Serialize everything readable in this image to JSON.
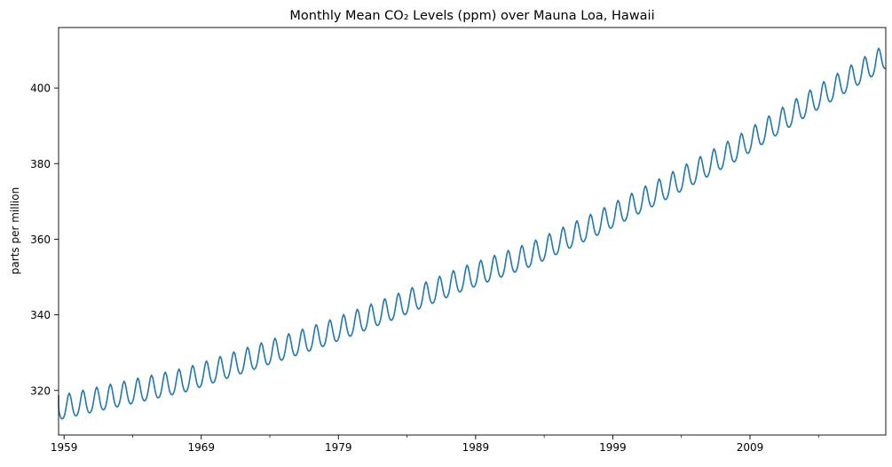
{
  "chart_data": {
    "type": "line",
    "title": "Monthly Mean CO₂ Levels (ppm) over Mauna Loa, Hawaii",
    "xlabel": "",
    "ylabel": "parts per million",
    "xlim": [
      1958.6,
      2018.9
    ],
    "ylim": [
      308.2,
      416.0
    ],
    "x_ticks": [
      {
        "value": 1959,
        "label": "1959"
      },
      {
        "value": 1969,
        "label": "1969"
      },
      {
        "value": 1979,
        "label": "1979"
      },
      {
        "value": 1989,
        "label": "1989"
      },
      {
        "value": 1999,
        "label": "1999"
      },
      {
        "value": 2009,
        "label": "2009"
      }
    ],
    "x_minor_ticks": [
      1964,
      1974,
      1984,
      1994,
      2004,
      2014
    ],
    "y_ticks": [
      {
        "value": 320,
        "label": "320"
      },
      {
        "value": 340,
        "label": "340"
      },
      {
        "value": 360,
        "label": "360"
      },
      {
        "value": 380,
        "label": "380"
      },
      {
        "value": 400,
        "label": "400"
      }
    ],
    "grid": false,
    "series": [
      {
        "color": "#1f77b4",
        "frequency": "monthly",
        "start": "1958-03",
        "end": "2018-11",
        "trend_points": [
          {
            "x": 1958.6,
            "y": 315.0
          },
          {
            "x": 1963.0,
            "y": 318.5
          },
          {
            "x": 1968.0,
            "y": 322.5
          },
          {
            "x": 1973.0,
            "y": 328.5
          },
          {
            "x": 1978.0,
            "y": 334.5
          },
          {
            "x": 1983.0,
            "y": 341.5
          },
          {
            "x": 1988.0,
            "y": 349.0
          },
          {
            "x": 1993.0,
            "y": 355.5
          },
          {
            "x": 1998.0,
            "y": 364.0
          },
          {
            "x": 2003.0,
            "y": 373.5
          },
          {
            "x": 2008.0,
            "y": 383.5
          },
          {
            "x": 2013.0,
            "y": 395.0
          },
          {
            "x": 2018.9,
            "y": 408.0
          }
        ],
        "seasonal_amplitude": 3.2,
        "seasonal_peak_month": "May"
      }
    ]
  }
}
